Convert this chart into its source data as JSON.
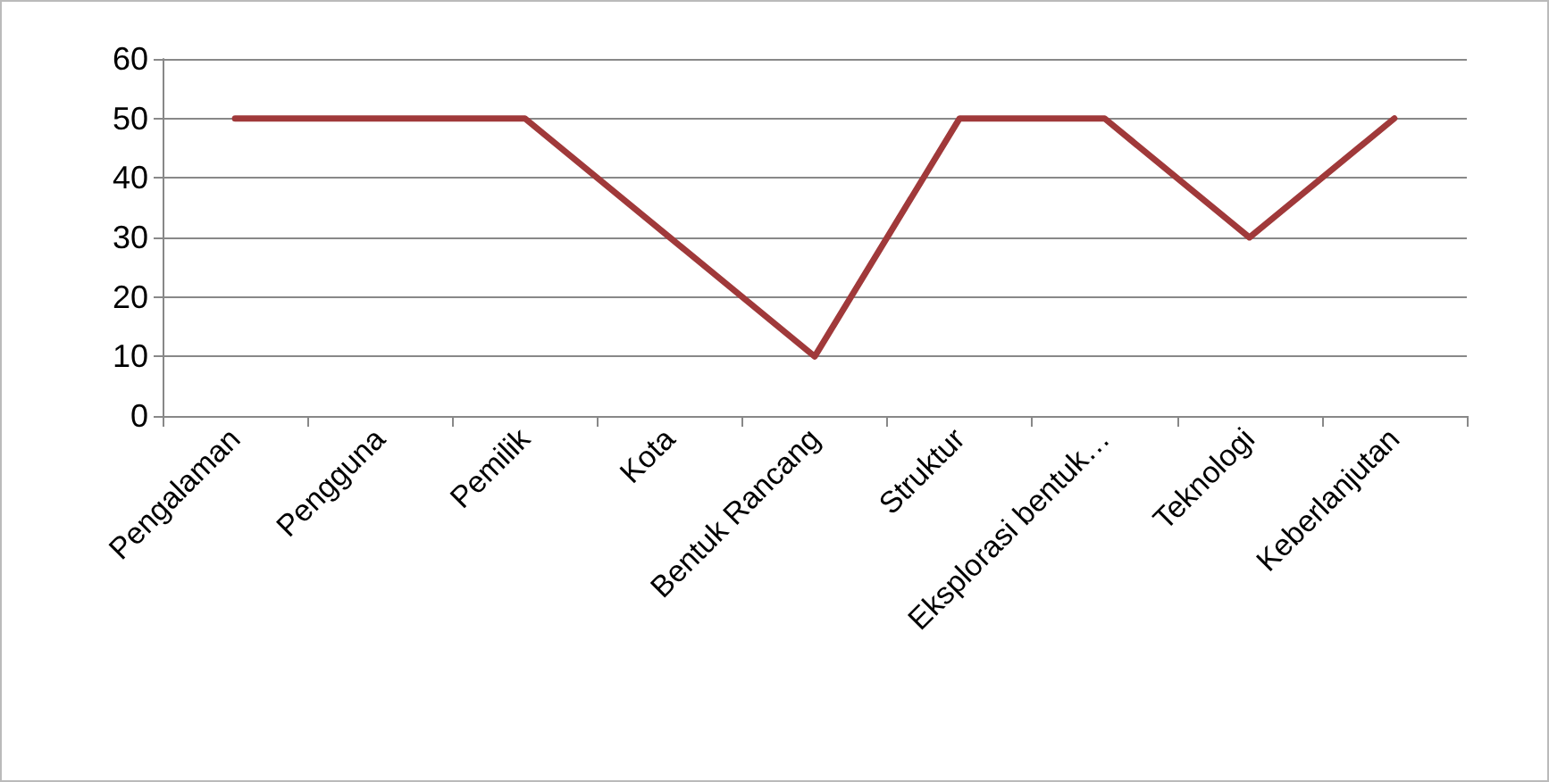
{
  "chart_data": {
    "type": "line",
    "categories": [
      "Pengalaman",
      "Pengguna",
      "Pemilik",
      "Kota",
      "Bentuk Rancang",
      "Struktur",
      "Eksplorasi bentuk…",
      "Teknologi",
      "Keberlanjutan"
    ],
    "series": [
      {
        "color": "#a0393a",
        "values": [
          50,
          50,
          50,
          30,
          10,
          50,
          50,
          30,
          50
        ]
      }
    ],
    "ylim": [
      0,
      60
    ],
    "yticks": [
      0,
      10,
      20,
      30,
      40,
      50,
      60
    ],
    "grid": "y",
    "marker": "none",
    "line_style": "solid"
  }
}
